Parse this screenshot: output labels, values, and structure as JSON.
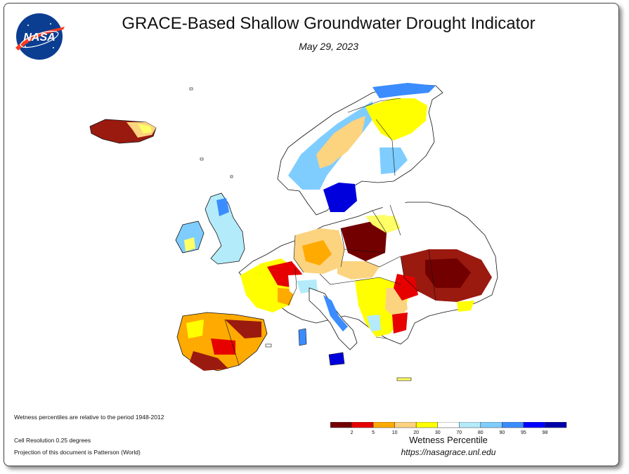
{
  "header": {
    "title": "GRACE-Based Shallow Groundwater Drought Indicator",
    "date": "May 29, 2023",
    "logo_text": "NASA"
  },
  "notes": {
    "period": "Wetness percentiles are relative to the period 1948-2012",
    "resolution": "Cell Resolution 0.25 degrees",
    "projection": "Projection of this document is Patterson (World)"
  },
  "legend": {
    "title": "Wetness Percentile",
    "url": "https://nasagrace.unl.edu",
    "bins": [
      {
        "color": "#730000",
        "label": "2"
      },
      {
        "color": "#e60000",
        "label": "5"
      },
      {
        "color": "#ffaa00",
        "label": "10"
      },
      {
        "color": "#fcd37f",
        "label": "20"
      },
      {
        "color": "#ffff00",
        "label": "30"
      },
      {
        "color": "#ffffff",
        "label": "70"
      },
      {
        "color": "#b4ebfa",
        "label": "80"
      },
      {
        "color": "#7fcdff",
        "label": "90"
      },
      {
        "color": "#3a8cff",
        "label": "95"
      },
      {
        "color": "#0000ff",
        "label": "98"
      },
      {
        "color": "#0000aa",
        "label": ""
      }
    ]
  },
  "map_colors": {
    "outline": "#111111",
    "land_default": "#ffffff"
  }
}
